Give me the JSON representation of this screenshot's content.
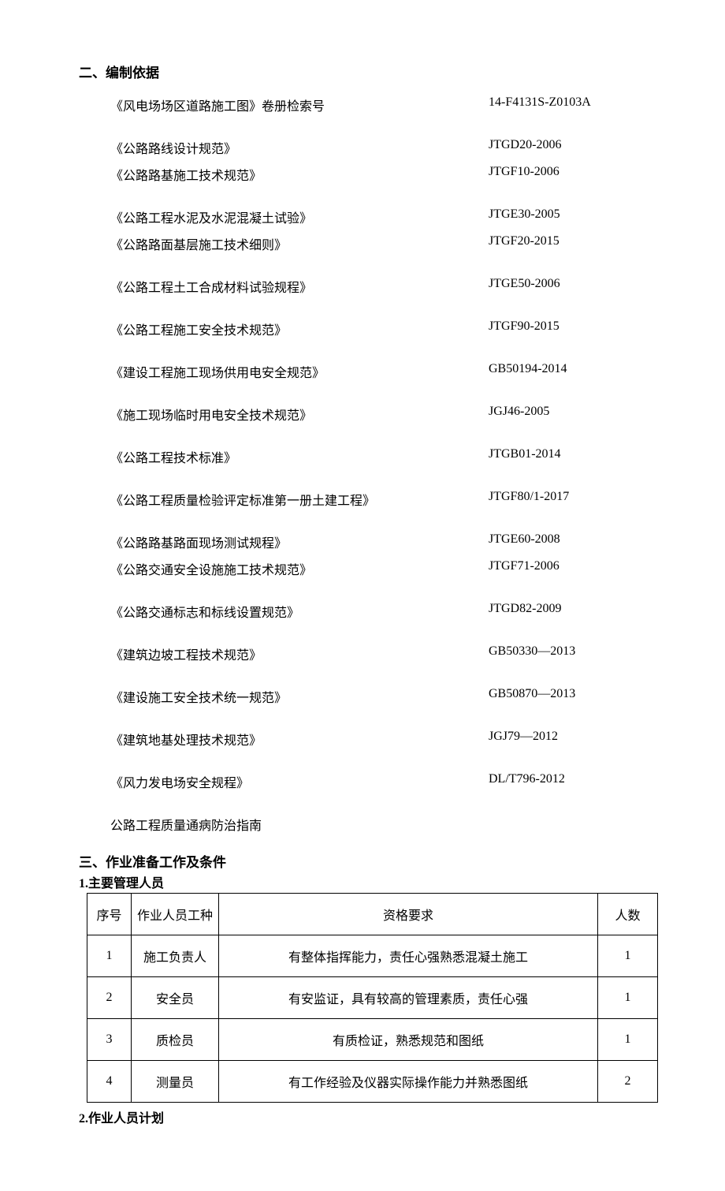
{
  "section2_heading": "二、编制依据",
  "references": [
    {
      "name": "《风电场场区道路施工图》卷册检索号",
      "code": "14-F4131S-Z0103A",
      "spacer_after": true
    },
    {
      "name": "《公路路线设计规范》",
      "code": "JTGD20-2006"
    },
    {
      "name": "《公路路基施工技术规范》",
      "code": "JTGF10-2006",
      "spacer_after": true
    },
    {
      "name": "《公路工程水泥及水泥混凝土试验》",
      "code": "JTGE30-2005"
    },
    {
      "name": "《公路路面基层施工技术细则》",
      "code": "JTGF20-2015",
      "spacer_after": true
    },
    {
      "name": "《公路工程土工合成材料试验规程》",
      "code": "JTGE50-2006",
      "spacer_after": true
    },
    {
      "name": "《公路工程施工安全技术规范》",
      "code": "JTGF90-2015",
      "spacer_after": true
    },
    {
      "name": "《建设工程施工现场供用电安全规范》",
      "code": "GB50194-2014",
      "spacer_after": true
    },
    {
      "name": "《施工现场临时用电安全技术规范》",
      "code": "JGJ46-2005",
      "spacer_after": true
    },
    {
      "name": "《公路工程技术标准》",
      "code": "JTGB01-2014",
      "spacer_after": true
    },
    {
      "name": "《公路工程质量检验评定标准第一册土建工程》",
      "code": "JTGF80/1-2017",
      "spacer_after": true
    },
    {
      "name": "《公路路基路面现场测试规程》",
      "code": "JTGE60-2008"
    },
    {
      "name": "《公路交通安全设施施工技术规范》",
      "code": "JTGF71-2006",
      "spacer_after": true
    },
    {
      "name": "《公路交通标志和标线设置规范》",
      "code": "JTGD82-2009",
      "spacer_after": true
    },
    {
      "name": "《建筑边坡工程技术规范》",
      "code": "GB50330—2013",
      "spacer_after": true
    },
    {
      "name": "《建设施工安全技术统一规范》",
      "code": "GB50870—2013",
      "spacer_after": true
    },
    {
      "name": "《建筑地基处理技术规范》",
      "code": "JGJ79—2012",
      "spacer_after": true
    },
    {
      "name": "《风力发电场安全规程》",
      "code": "DL/T796-2012",
      "spacer_after": true
    },
    {
      "name": "公路工程质量通病防治指南",
      "code": "",
      "spacer_after": true
    }
  ],
  "section3_heading": "三、作业准备工作及条件",
  "subsection3_1": "1.主要管理人员",
  "table_headers": {
    "idx": "序号",
    "role": "作业人员工种",
    "req": "资格要求",
    "count": "人数"
  },
  "personnel_rows": [
    {
      "idx": "1",
      "role": "施工负责人",
      "req": "有整体指挥能力，责任心强熟悉混凝土施工",
      "count": "1"
    },
    {
      "idx": "2",
      "role": "安全员",
      "req": "有安监证，具有较高的管理素质，责任心强",
      "count": "1"
    },
    {
      "idx": "3",
      "role": "质检员",
      "req": "有质检证，熟悉规范和图纸",
      "count": "1"
    },
    {
      "idx": "4",
      "role": "测量员",
      "req": "有工作经验及仪器实际操作能力并熟悉图纸",
      "count": "2"
    }
  ],
  "subsection3_2": "2.作业人员计划"
}
